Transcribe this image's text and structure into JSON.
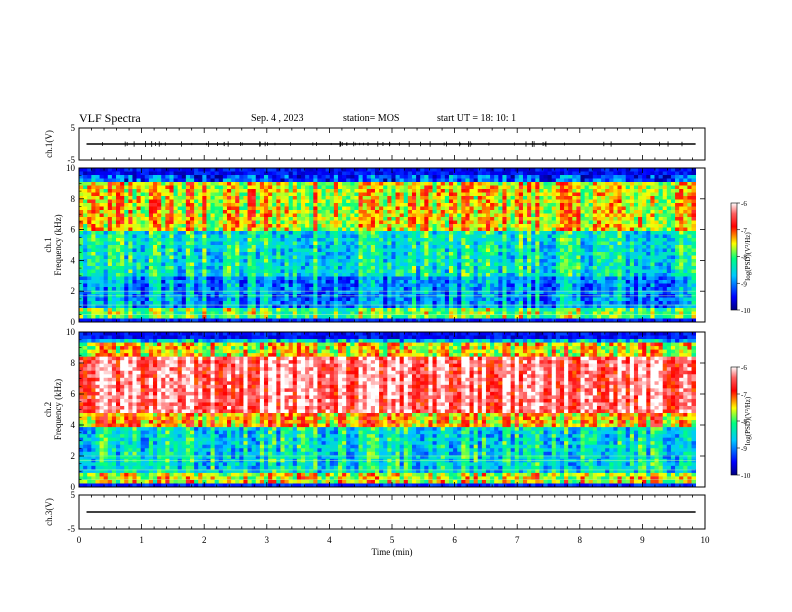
{
  "header": {
    "title": "VLF Spectra",
    "date": "Sep. 4 , 2023",
    "station": "station= MOS",
    "start": "start  UT =   18: 10: 1"
  },
  "chart_data": [
    {
      "type": "line",
      "name": "ch1-waveform",
      "ylabel": "ch.1(V)",
      "ylim": [
        -5,
        5
      ],
      "yticks": [
        "5",
        "-5"
      ],
      "xlim": [
        0,
        10
      ],
      "level": 0
    },
    {
      "type": "heatmap",
      "name": "ch1-spectrogram",
      "ylabel": "Frequency (kHz)",
      "channel_label": "ch.1",
      "ylim": [
        0,
        10
      ],
      "yticks": [
        "0",
        "2",
        "4",
        "6",
        "8",
        "10"
      ],
      "xlim": [
        0,
        10
      ],
      "data_end_x": 9.85,
      "colorbar": {
        "label": "log(PSD)(V²/Hz)",
        "ticks": [
          "-6",
          "-7",
          "-8",
          "-9",
          "-10"
        ],
        "range": [
          -10,
          -6
        ]
      }
    },
    {
      "type": "heatmap",
      "name": "ch2-spectrogram",
      "ylabel": "Frequency (kHz)",
      "channel_label": "ch.2",
      "ylim": [
        0,
        10
      ],
      "yticks": [
        "0",
        "2",
        "4",
        "6",
        "8",
        "10"
      ],
      "xlim": [
        0,
        10
      ],
      "data_end_x": 9.85,
      "colorbar": {
        "label": "log(PSD)(V²/Hz)",
        "ticks": [
          "-6",
          "-7",
          "-8",
          "-9",
          "-10"
        ],
        "range": [
          -10,
          -6
        ]
      }
    },
    {
      "type": "line",
      "name": "ch3-waveform",
      "ylabel": "ch.3(V)",
      "ylim": [
        -5,
        5
      ],
      "yticks": [
        "5",
        "-5"
      ],
      "xlim": [
        0,
        10
      ],
      "level": 0
    }
  ],
  "xaxis": {
    "label": "Time  (min)",
    "ticks": [
      "0",
      "1",
      "2",
      "3",
      "4",
      "5",
      "6",
      "7",
      "8",
      "9",
      "10"
    ]
  },
  "colors": {
    "colormap": [
      "#000080",
      "#0000ff",
      "#00c8ff",
      "#00ff80",
      "#ffff00",
      "#ff0000",
      "#ffffff"
    ]
  }
}
